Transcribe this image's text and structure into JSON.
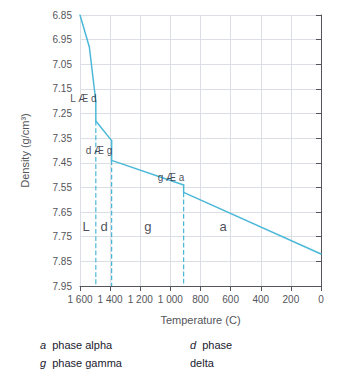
{
  "chart_data": {
    "type": "line",
    "xlabel": "Temperature (C)",
    "ylabel": "Density (g/cm³)",
    "xlim": [
      1600,
      0
    ],
    "ylim": [
      7.95,
      6.85
    ],
    "xticks": [
      {
        "value": 1600,
        "label": "1 600"
      },
      {
        "value": 1400,
        "label": "1 400"
      },
      {
        "value": 1200,
        "label": "1 200"
      },
      {
        "value": 1000,
        "label": "1 000"
      },
      800,
      600,
      400,
      200,
      0
    ],
    "yticks": [
      6.85,
      6.95,
      7.05,
      7.15,
      7.25,
      7.35,
      7.45,
      7.55,
      7.65,
      7.75,
      7.85,
      7.95
    ],
    "grid": true,
    "color": "#4bb8d8",
    "segments": [
      {
        "x": [
          1600,
          1538,
          1495
        ],
        "y": [
          6.85,
          6.98,
          7.2
        ]
      },
      {
        "x": [
          1495,
          1495
        ],
        "y": [
          7.2,
          7.28
        ]
      },
      {
        "x": [
          1495,
          1390
        ],
        "y": [
          7.28,
          7.36
        ]
      },
      {
        "x": [
          1390,
          1390
        ],
        "y": [
          7.36,
          7.44
        ]
      },
      {
        "x": [
          1390,
          912
        ],
        "y": [
          7.44,
          7.54
        ]
      },
      {
        "x": [
          912,
          912
        ],
        "y": [
          7.54,
          7.57
        ]
      },
      {
        "x": [
          912,
          0
        ],
        "y": [
          7.57,
          7.82
        ]
      }
    ],
    "vlines": {
      "x": [
        1495,
        1390,
        912
      ],
      "y_top": [
        7.28,
        7.44,
        7.57
      ],
      "y_bottom": 7.95,
      "color": "#4bb8d8",
      "line_style": "dashed"
    },
    "phase_labels": [
      {
        "text": "L",
        "x": 1560,
        "y": 7.71
      },
      {
        "text": "d",
        "x": 1440,
        "y": 7.71
      },
      {
        "text": "g",
        "x": 1150,
        "y": 7.71
      },
      {
        "text": "a",
        "x": 650,
        "y": 7.71
      }
    ],
    "transition_labels": [
      {
        "text": "L Æ d",
        "x": 1490,
        "y": 7.19
      },
      {
        "text": "d Æ g",
        "x": 1385,
        "y": 7.4
      },
      {
        "text": "g Æ a",
        "x": 907,
        "y": 7.51
      }
    ],
    "key": [
      {
        "symbol": "a",
        "lines": [
          "phase alpha"
        ]
      },
      {
        "symbol": "g",
        "lines": [
          "phase gamma"
        ]
      },
      {
        "symbol": "d",
        "lines": [
          "phase",
          "delta"
        ]
      }
    ]
  }
}
